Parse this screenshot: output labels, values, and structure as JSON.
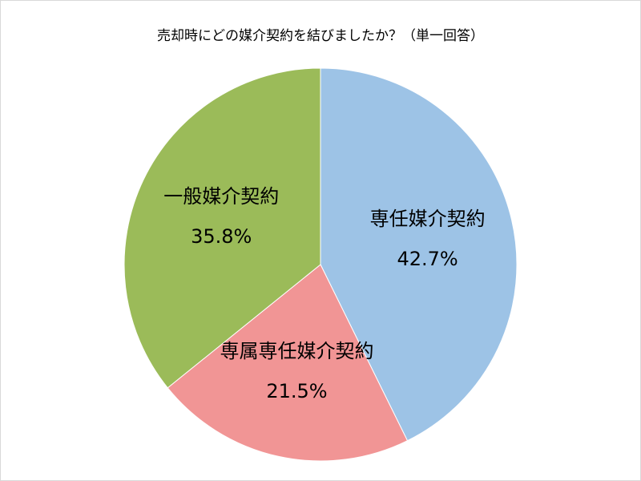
{
  "chart_data": {
    "type": "pie",
    "title": "売却時にどの媒介契約を結びましたか？（単一回答）",
    "categories": [
      "専任媒介契約",
      "専属専任媒介契約",
      "一般媒介契約"
    ],
    "values": [
      42.7,
      21.5,
      35.8
    ],
    "value_labels": [
      "42.7%",
      "21.5%",
      "35.8%"
    ],
    "colors": [
      "#9dc3e6",
      "#f19595",
      "#9bbb59"
    ]
  }
}
